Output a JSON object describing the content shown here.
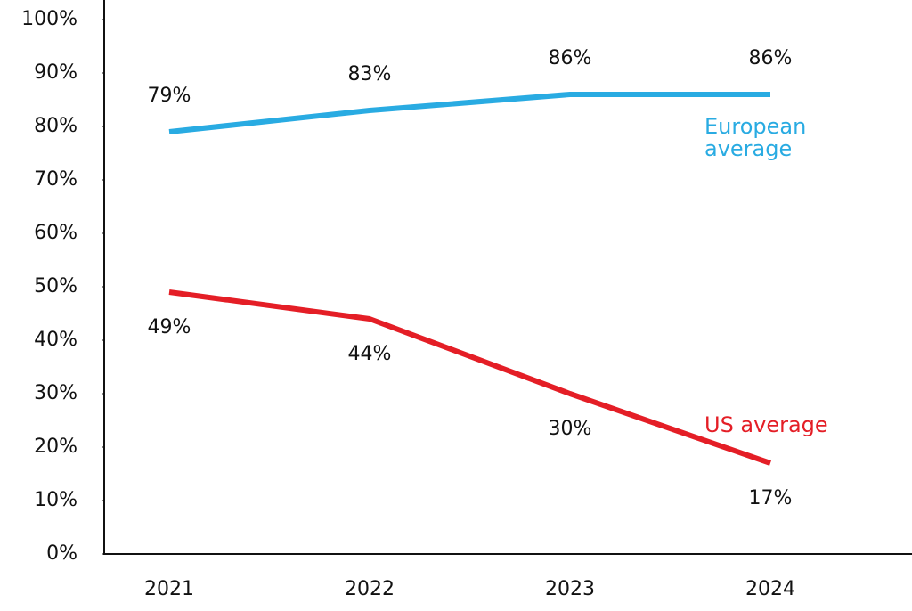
{
  "chart_data": {
    "type": "line",
    "categories": [
      "2021",
      "2022",
      "2023",
      "2024"
    ],
    "series": [
      {
        "name": "European average",
        "color": "#29abe2",
        "values": [
          79,
          83,
          86,
          86
        ],
        "value_labels": [
          "79%",
          "83%",
          "86%",
          "86%"
        ]
      },
      {
        "name": "US average",
        "color": "#e41e26",
        "values": [
          49,
          44,
          30,
          17
        ],
        "value_labels": [
          "49%",
          "44%",
          "30%",
          "17%"
        ]
      }
    ],
    "ylim": [
      0,
      100
    ],
    "yticks": [
      {
        "value": 0,
        "label": "0%"
      },
      {
        "value": 10,
        "label": "10%"
      },
      {
        "value": 20,
        "label": "20%"
      },
      {
        "value": 30,
        "label": "30%"
      },
      {
        "value": 40,
        "label": "40%"
      },
      {
        "value": 50,
        "label": "50%"
      },
      {
        "value": 60,
        "label": "60%"
      },
      {
        "value": 70,
        "label": "70%"
      },
      {
        "value": 80,
        "label": "80%"
      },
      {
        "value": 90,
        "label": "90%"
      },
      {
        "value": 100,
        "label": "100%"
      }
    ],
    "grid": false
  }
}
